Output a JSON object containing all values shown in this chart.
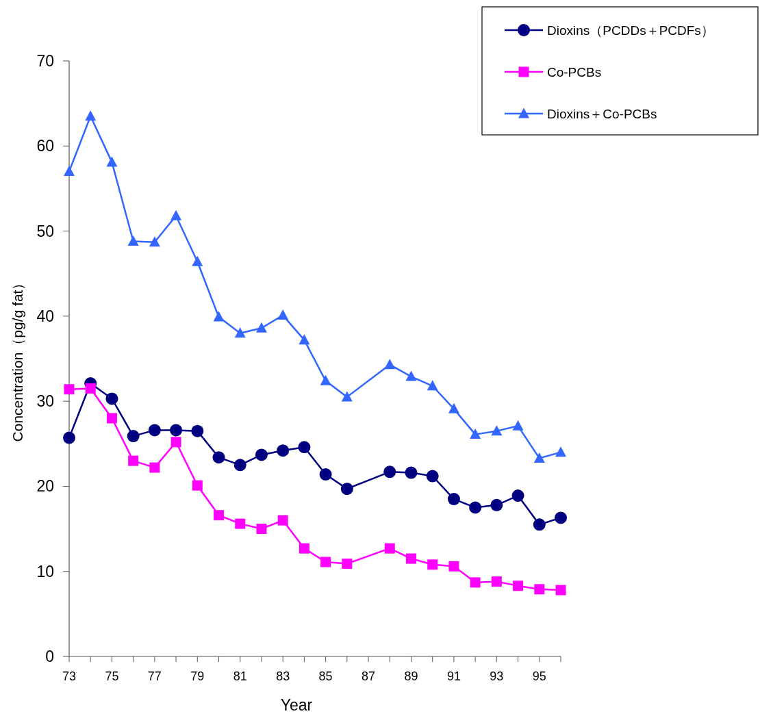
{
  "chart_data": {
    "type": "line",
    "xlabel": "Year",
    "ylabel": "Concentration（pg/g fat）",
    "x": [
      73,
      74,
      75,
      76,
      77,
      78,
      79,
      80,
      81,
      82,
      83,
      84,
      85,
      86,
      88,
      89,
      90,
      91,
      92,
      93,
      94,
      95,
      96
    ],
    "xlim": [
      73,
      96
    ],
    "xticks": [
      73,
      {
        "value": 74,
        "label": null
      },
      75,
      {
        "value": 76,
        "label": null
      },
      77,
      {
        "value": 78,
        "label": null
      },
      79,
      {
        "value": 80,
        "label": null
      },
      81,
      {
        "value": 82,
        "label": null
      },
      83,
      {
        "value": 84,
        "label": null
      },
      85,
      {
        "value": 86,
        "label": null
      },
      87,
      {
        "value": 88,
        "label": null
      },
      89,
      {
        "value": 90,
        "label": null
      },
      91,
      {
        "value": 92,
        "label": null
      },
      93,
      {
        "value": 94,
        "label": null
      },
      95,
      {
        "value": 96,
        "label": null
      }
    ],
    "ylim": [
      0,
      70
    ],
    "yticks": [
      0,
      10,
      20,
      30,
      40,
      50,
      60,
      70
    ],
    "grid": false,
    "legend": "top right",
    "line_style": "solid",
    "series": [
      {
        "name": "Dioxins（PCDDs＋PCDFs）",
        "color": "#000080",
        "marker": "circle",
        "values": [
          25.7,
          32.1,
          30.3,
          25.9,
          26.6,
          26.6,
          26.5,
          23.4,
          22.5,
          23.7,
          24.2,
          24.6,
          21.4,
          19.7,
          21.7,
          21.6,
          21.2,
          18.5,
          17.5,
          17.8,
          18.9,
          15.5,
          16.3
        ]
      },
      {
        "name": "Co-PCBs",
        "color": "#ff00ff",
        "marker": "square",
        "values": [
          31.4,
          31.5,
          28.0,
          23.0,
          22.2,
          25.2,
          20.1,
          16.6,
          15.6,
          15.0,
          16.0,
          12.7,
          11.1,
          10.9,
          12.7,
          11.5,
          10.8,
          10.6,
          8.7,
          8.8,
          8.3,
          7.9,
          7.8
        ]
      },
      {
        "name": "Dioxins＋Co-PCBs",
        "color": "#3366ff",
        "marker": "triangle",
        "values": [
          57.0,
          63.5,
          58.1,
          48.8,
          48.7,
          51.8,
          46.4,
          39.9,
          38.0,
          38.6,
          40.1,
          37.2,
          32.4,
          30.5,
          34.3,
          32.9,
          31.8,
          29.1,
          26.1,
          26.5,
          27.1,
          23.3,
          24.0
        ]
      }
    ]
  }
}
